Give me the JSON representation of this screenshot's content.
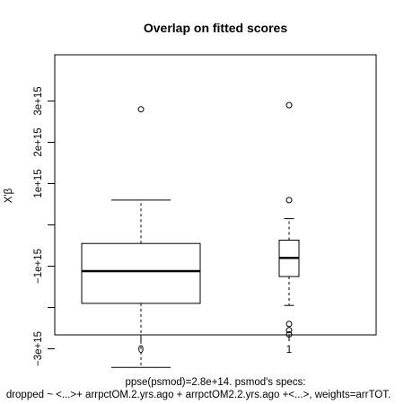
{
  "chart_data": {
    "type": "boxplot",
    "title": "Overlap on fitted scores",
    "xlabel": "ppse(psmod)=2.8e+14. psmod's specs:",
    "subtitle": "dropped ~ <...>+ arrpctOM.2.yrs.ago + arrpctOM2.2.yrs.ago +<...>, weights=arrTOT.",
    "ylabel": "X'β",
    "categories": [
      "0",
      "1"
    ],
    "yticks": [
      -3000000000000000.0,
      -1000000000000000.0,
      1000000000000000.0,
      3000000000000000.0
    ],
    "ytick_labels": [
      "−3e+15",
      "−1e+15",
      "1e+15",
      "3e+15"
    ],
    "yticks_minor": [
      -2000000000000000.0,
      0,
      2000000000000000.0
    ],
    "ytick_minor_labels": [
      "",
      "",
      "2e+15"
    ],
    "ylim": [
      -3700000000000000.0,
      3400000000000000.0
    ],
    "boxes": [
      {
        "category": "0",
        "whisker_low": -3450000000000000.0,
        "q1": -1900000000000000.0,
        "median": -1120000000000000.0,
        "q3": -450000000000000.0,
        "whisker_high": 600000000000000.0,
        "outliers": [
          2800000000000000.0
        ]
      },
      {
        "category": "1",
        "whisker_low": -1950000000000000.0,
        "q1": -1250000000000000.0,
        "median": -800000000000000.0,
        "q3": -370000000000000.0,
        "whisker_high": 150000000000000.0,
        "outliers": [
          2900000000000000.0,
          600000000000000.0,
          -2400000000000000.0,
          -2550000000000000.0,
          -2650000000000000.0
        ]
      }
    ]
  }
}
